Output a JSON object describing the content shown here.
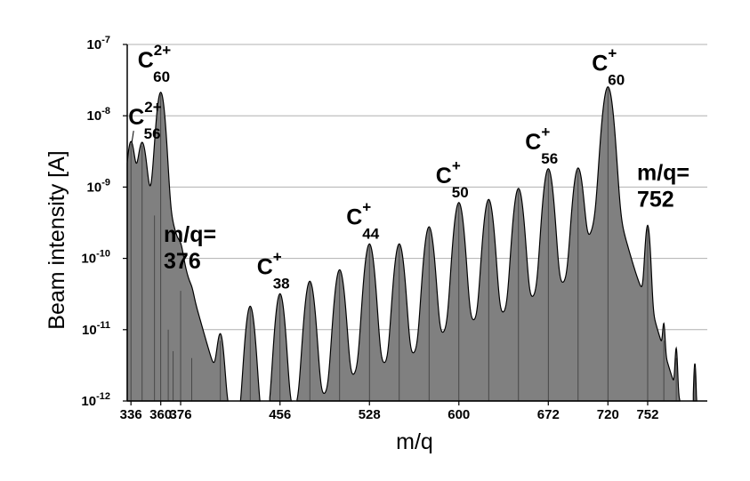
{
  "chart_data": {
    "type": "area",
    "xlabel": "m/q",
    "ylabel": "Beam intensity [A]",
    "x_scale": "linear",
    "y_scale": "log",
    "xlim": [
      333,
      800
    ],
    "ylim": [
      1e-12,
      1e-07
    ],
    "grid": "horizontal",
    "fill_color": "#808080",
    "line_color": "#000000",
    "x_ticks": [
      336,
      360,
      376,
      456,
      528,
      600,
      672,
      720,
      752
    ],
    "y_ticks": [
      {
        "value": 1e-12,
        "base": "10",
        "exp": "-12"
      },
      {
        "value": 1e-11,
        "base": "10",
        "exp": "-11"
      },
      {
        "value": 1e-10,
        "base": "10",
        "exp": "-10"
      },
      {
        "value": 1e-09,
        "base": "10",
        "exp": "-9"
      },
      {
        "value": 1e-08,
        "base": "10",
        "exp": "-8"
      },
      {
        "value": 1e-07,
        "base": "10",
        "exp": "-7"
      }
    ],
    "series": [
      {
        "values": [
          {
            "x": 336,
            "y": 4e-09,
            "w": 2.5
          },
          {
            "x": 345,
            "y": 3.8e-09,
            "w": 2.8
          },
          {
            "x": 355,
            "y": 4e-10,
            "w": 3
          },
          {
            "x": 360,
            "y": 2e-08,
            "w": 2.6
          },
          {
            "x": 366,
            "y": 1e-11,
            "w": 2.5
          },
          {
            "x": 370,
            "y": 5e-12,
            "w": 2.5
          },
          {
            "x": 376,
            "y": 3.5e-11,
            "w": 1.8
          },
          {
            "x": 385,
            "y": 4e-12,
            "w": 1.5
          },
          {
            "x": 408,
            "y": 7e-12,
            "w": 2.2
          },
          {
            "x": 432,
            "y": 2e-11,
            "w": 2.8
          },
          {
            "x": 456,
            "y": 3e-11,
            "w": 2.8
          },
          {
            "x": 480,
            "y": 4.5e-11,
            "w": 3
          },
          {
            "x": 504,
            "y": 6.5e-11,
            "w": 3
          },
          {
            "x": 528,
            "y": 1.5e-10,
            "w": 3
          },
          {
            "x": 552,
            "y": 1.5e-10,
            "w": 3
          },
          {
            "x": 576,
            "y": 2.6e-10,
            "w": 3
          },
          {
            "x": 600,
            "y": 5.7e-10,
            "w": 3
          },
          {
            "x": 624,
            "y": 6.3e-10,
            "w": 3
          },
          {
            "x": 648,
            "y": 9e-10,
            "w": 3
          },
          {
            "x": 672,
            "y": 1.7e-09,
            "w": 3
          },
          {
            "x": 696,
            "y": 1.7e-09,
            "w": 3
          },
          {
            "x": 720,
            "y": 2.4e-08,
            "w": 3.2
          },
          {
            "x": 752,
            "y": 2.6e-10,
            "w": 1.6
          },
          {
            "x": 765,
            "y": 7e-12,
            "w": 0.8
          },
          {
            "x": 775,
            "y": 4e-12,
            "w": 0.8
          },
          {
            "x": 790,
            "y": 3e-12,
            "w": 0.8
          }
        ]
      }
    ],
    "annotations": [
      {
        "text": "C",
        "sup": "2+",
        "sub": "56",
        "x": 336,
        "y": 4e-09
      },
      {
        "text": "C",
        "sup": "2+",
        "sub": "60",
        "x": 360,
        "y": 2e-08
      },
      {
        "text": "m/q=",
        "line2": "376",
        "x": 376,
        "y": 3.5e-11
      },
      {
        "text": "C",
        "sup": "+",
        "sub": "38",
        "x": 456,
        "y": 3e-11
      },
      {
        "text": "C",
        "sup": "+",
        "sub": "44",
        "x": 528,
        "y": 1.5e-10
      },
      {
        "text": "C",
        "sup": "+",
        "sub": "50",
        "x": 600,
        "y": 5.7e-10
      },
      {
        "text": "C",
        "sup": "+",
        "sub": "56",
        "x": 672,
        "y": 1.7e-09
      },
      {
        "text": "C",
        "sup": "+",
        "sub": "60",
        "x": 720,
        "y": 2.4e-08
      },
      {
        "text": "m/q=",
        "line2": "752",
        "x": 752,
        "y": 2.6e-10
      }
    ]
  }
}
